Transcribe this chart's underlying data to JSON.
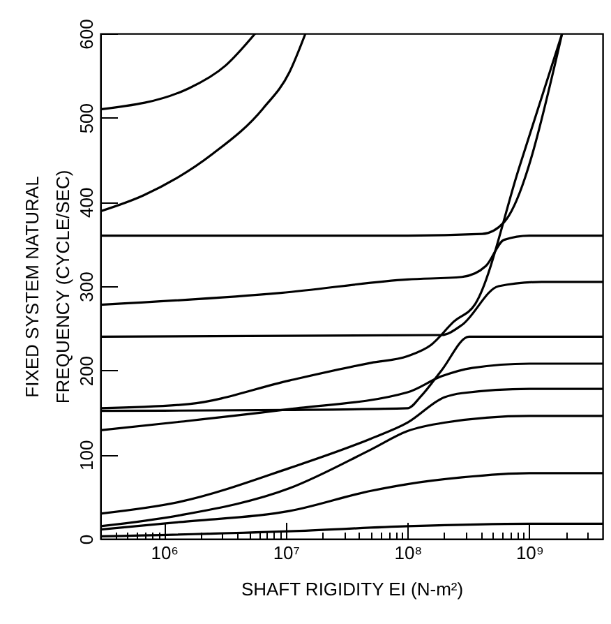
{
  "chart_data": {
    "type": "line",
    "xlabel": "SHAFT RIGIDITY EI (N-m²)",
    "ylabel": "FIXED SYSTEM NATURAL\nFREQUENCY (CYCLE/SEC)",
    "log": "x",
    "xlim": [
      300000,
      4000000000
    ],
    "ylim": [
      0,
      600
    ],
    "xticks": [
      {
        "value": 400000,
        "label": null
      },
      {
        "value": 500000,
        "label": null
      },
      {
        "value": 600000,
        "label": null
      },
      {
        "value": 700000,
        "label": null
      },
      {
        "value": 800000,
        "label": null
      },
      {
        "value": 900000,
        "label": null
      },
      {
        "value": 1000000,
        "label": "10⁶"
      },
      {
        "value": 2000000,
        "label": null
      },
      {
        "value": 3000000,
        "label": null
      },
      {
        "value": 4000000,
        "label": null
      },
      {
        "value": 5000000,
        "label": null
      },
      {
        "value": 6000000,
        "label": null
      },
      {
        "value": 7000000,
        "label": null
      },
      {
        "value": 8000000,
        "label": null
      },
      {
        "value": 9000000,
        "label": null
      },
      {
        "value": 10000000,
        "label": "10⁷"
      },
      {
        "value": 20000000,
        "label": null
      },
      {
        "value": 30000000,
        "label": null
      },
      {
        "value": 40000000,
        "label": null
      },
      {
        "value": 50000000,
        "label": null
      },
      {
        "value": 60000000,
        "label": null
      },
      {
        "value": 70000000,
        "label": null
      },
      {
        "value": 80000000,
        "label": null
      },
      {
        "value": 90000000,
        "label": null
      },
      {
        "value": 100000000,
        "label": "10⁸"
      },
      {
        "value": 200000000,
        "label": null
      },
      {
        "value": 300000000,
        "label": null
      },
      {
        "value": 400000000,
        "label": null
      },
      {
        "value": 500000000,
        "label": null
      },
      {
        "value": 600000000,
        "label": null
      },
      {
        "value": 700000000,
        "label": null
      },
      {
        "value": 800000000,
        "label": null
      },
      {
        "value": 900000000,
        "label": null
      },
      {
        "value": 1000000000,
        "label": "10⁹"
      },
      {
        "value": 2000000000,
        "label": null
      },
      {
        "value": 3000000000,
        "label": null
      }
    ],
    "yticks": [
      0,
      100,
      200,
      300,
      400,
      500,
      600
    ],
    "series": [
      {
        "color": "#000000",
        "x": [
          300000,
          1600000,
          3200000,
          5600000
        ],
        "values": [
          510,
          535,
          562,
          600
        ]
      },
      {
        "color": "#000000",
        "x": [
          300000,
          680000,
          2500000,
          6500000,
          10700000,
          14500000
        ],
        "values": [
          389,
          408,
          457,
          511,
          554,
          600
        ]
      },
      {
        "color": "#000000",
        "x": [
          300000,
          100000000,
          410000000,
          620000000,
          1860000000
        ],
        "values": [
          360,
          360,
          362,
          376,
          600
        ]
      },
      {
        "color": "#000000",
        "x": [
          300000,
          9100000,
          100000000,
          280000000,
          440000000,
          620000000,
          1000000000,
          1600000000,
          4000000000
        ],
        "values": [
          278,
          292,
          308,
          311,
          324,
          355,
          360,
          360,
          360
        ]
      },
      {
        "color": "#000000",
        "x": [
          300000,
          190000000,
          280000000,
          560000000,
          1260000000,
          4000000000
        ],
        "values": [
          240,
          242,
          254,
          300,
          305,
          305
        ]
      },
      {
        "color": "#000000",
        "x": [
          300000,
          1600000,
          10700000,
          50000000,
          100000000,
          155000000,
          240000000,
          360000000,
          830000000,
          1860000000
        ],
        "values": [
          155,
          160,
          188,
          209,
          217,
          230,
          258,
          279,
          442,
          600
        ]
      },
      {
        "color": "#000000",
        "x": [
          300000,
          10000000,
          100000000,
          130000000,
          190000000,
          320000000,
          4000000000
        ],
        "values": [
          152,
          153,
          155,
          170,
          200,
          240,
          240
        ]
      },
      {
        "color": "#000000",
        "x": [
          300000,
          1350000,
          10700000,
          100000000,
          190000000,
          340000000,
          1000000000,
          4000000000
        ],
        "values": [
          129,
          139,
          154,
          174,
          193,
          203,
          208,
          208
        ]
      },
      {
        "color": "#000000",
        "x": [
          300000,
          1350000,
          10700000,
          50000000,
          100000000,
          200000000,
          280000000,
          1000000000,
          4000000000
        ],
        "values": [
          30,
          44,
          84,
          119,
          138,
          168,
          173,
          178,
          178
        ]
      },
      {
        "color": "#000000",
        "x": [
          300000,
          1350000,
          10700000,
          50000000,
          100000000,
          200000000,
          1000000000,
          4000000000
        ],
        "values": [
          15,
          28,
          60,
          106,
          128,
          138,
          146,
          146
        ]
      },
      {
        "color": "#000000",
        "x": [
          300000,
          1350000,
          10700000,
          50000000,
          100000000,
          280000000,
          1000000000,
          4000000000
        ],
        "values": [
          11,
          20,
          33,
          57,
          65,
          73,
          78,
          78
        ]
      },
      {
        "color": "#000000",
        "x": [
          300000,
          10700000,
          100000000,
          1000000000,
          4000000000
        ],
        "values": [
          3,
          9,
          15,
          18,
          18
        ]
      }
    ]
  }
}
